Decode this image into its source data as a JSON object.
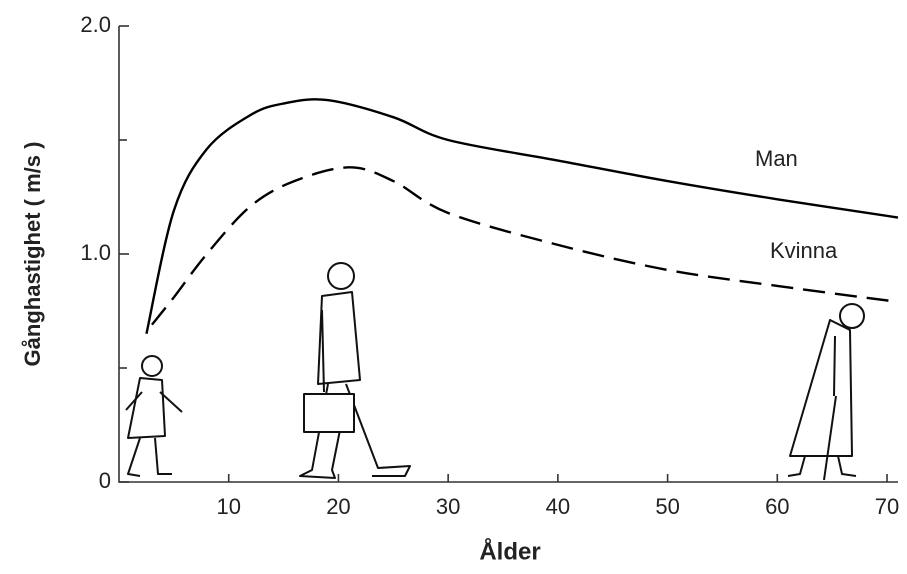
{
  "chart_data": {
    "type": "line",
    "xlabel": "Ålder",
    "ylabel": "Gånghastighet ( m/s )",
    "xlim": [
      0,
      71
    ],
    "ylim": [
      0,
      2.0
    ],
    "xticks": [
      10,
      20,
      30,
      40,
      50,
      60,
      70
    ],
    "yticks": [
      0,
      {
        "value": 1.0,
        "label": "1.0"
      },
      {
        "value": 2.0,
        "label": "2.0"
      }
    ],
    "minor_yticks": [
      0.5,
      1.5
    ],
    "series": [
      {
        "name": "Man",
        "color": "#000000",
        "dash": "solid",
        "x": [
          2.5,
          5,
          8,
          12,
          15,
          19,
          25,
          30,
          40,
          50,
          60,
          71
        ],
        "values": [
          0.65,
          1.19,
          1.46,
          1.61,
          1.66,
          1.675,
          1.6,
          1.5,
          1.41,
          1.32,
          1.24,
          1.16
        ]
      },
      {
        "name": "Kvinna",
        "color": "#000000",
        "dash": "dashed",
        "x": [
          3,
          5,
          8,
          12,
          16,
          21,
          25,
          30,
          40,
          50,
          60,
          71
        ],
        "values": [
          0.69,
          0.81,
          1.0,
          1.21,
          1.32,
          1.38,
          1.32,
          1.18,
          1.04,
          0.93,
          0.86,
          0.79
        ]
      }
    ]
  }
}
